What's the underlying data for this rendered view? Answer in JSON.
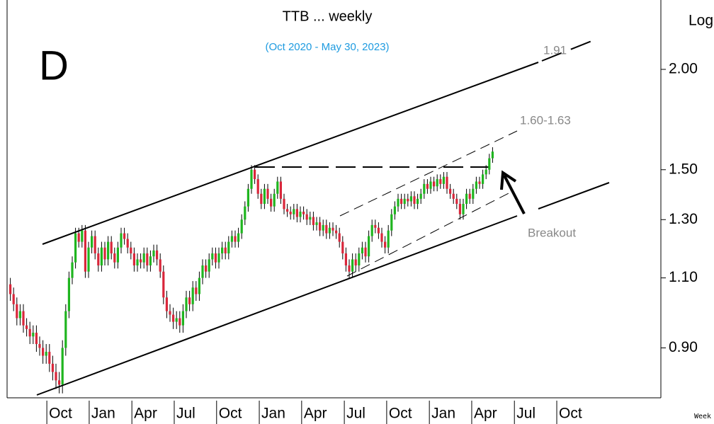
{
  "chart_data": {
    "type": "candlestick",
    "title": "TTB ... weekly",
    "subtitle": "(Oct 2020 - May 30, 2023)",
    "y_label": "Log",
    "footer": "Week",
    "log_scale": true,
    "annotations": [
      "D",
      "1.91",
      "1.60-1.63",
      "Breakout"
    ],
    "up_color": "#1fb51f",
    "down_color": "#d9263a",
    "ylim": [
      0.78,
      2.44
    ],
    "yticks": [
      {
        "value": 0.9,
        "label": "0.90"
      },
      {
        "value": 1.1,
        "label": "1.10"
      },
      {
        "value": 1.3,
        "label": "1.30"
      },
      {
        "value": 1.5,
        "label": "1.50"
      },
      {
        "value": 2.0,
        "label": "2.00"
      }
    ],
    "xlim": [
      -1,
      199
    ],
    "xticks": [
      {
        "value": 11.2,
        "label": "Oct"
      },
      {
        "value": 24.2,
        "label": "Jan"
      },
      {
        "value": 37.3,
        "label": "Apr"
      },
      {
        "value": 50.3,
        "label": "Jul"
      },
      {
        "value": 63.3,
        "label": "Oct"
      },
      {
        "value": 76.4,
        "label": "Jan"
      },
      {
        "value": 89.4,
        "label": "Apr"
      },
      {
        "value": 102.5,
        "label": "Jul"
      },
      {
        "value": 115.5,
        "label": "Oct"
      },
      {
        "value": 128.6,
        "label": "Jan"
      },
      {
        "value": 141.6,
        "label": "Apr"
      },
      {
        "value": 154.7,
        "label": "Jul"
      },
      {
        "value": 167.7,
        "label": "Oct"
      }
    ],
    "open": [
      1.08,
      1.05,
      1.02,
      0.98,
      1.0,
      0.96,
      0.95,
      0.93,
      0.94,
      0.91,
      0.9,
      0.88,
      0.89,
      0.86,
      0.84,
      0.82,
      0.81,
      0.9,
      1.0,
      1.1,
      1.15,
      1.25,
      1.22,
      1.26,
      1.12,
      1.2,
      1.24,
      1.18,
      1.14,
      1.2,
      1.16,
      1.22,
      1.18,
      1.15,
      1.2,
      1.25,
      1.23,
      1.2,
      1.18,
      1.14,
      1.16,
      1.15,
      1.18,
      1.14,
      1.17,
      1.19,
      1.16,
      1.12,
      1.04,
      1.0,
      0.99,
      0.97,
      0.98,
      0.96,
      1.0,
      1.04,
      1.02,
      1.07,
      1.05,
      1.1,
      1.14,
      1.12,
      1.16,
      1.18,
      1.15,
      1.18,
      1.2,
      1.18,
      1.22,
      1.24,
      1.22,
      1.25,
      1.3,
      1.35,
      1.42,
      1.5,
      1.46,
      1.4,
      1.36,
      1.42,
      1.38,
      1.35,
      1.4,
      1.45,
      1.38,
      1.34,
      1.33,
      1.32,
      1.34,
      1.31,
      1.33,
      1.32,
      1.3,
      1.31,
      1.28,
      1.29,
      1.26,
      1.28,
      1.25,
      1.27,
      1.26,
      1.25,
      1.22,
      1.18,
      1.14,
      1.12,
      1.16,
      1.14,
      1.18,
      1.2,
      1.17,
      1.24,
      1.28,
      1.27,
      1.25,
      1.22,
      1.2,
      1.26,
      1.32,
      1.35,
      1.38,
      1.36,
      1.38,
      1.37,
      1.39,
      1.36,
      1.38,
      1.4,
      1.44,
      1.42,
      1.45,
      1.43,
      1.46,
      1.44,
      1.47,
      1.42,
      1.4,
      1.38,
      1.36,
      1.32,
      1.36,
      1.4,
      1.38,
      1.42,
      1.45,
      1.44,
      1.48,
      1.5,
      1.55
    ],
    "high": [
      1.1,
      1.07,
      1.04,
      1.02,
      1.02,
      0.98,
      0.97,
      0.96,
      0.96,
      0.93,
      0.92,
      0.91,
      0.91,
      0.88,
      0.86,
      0.84,
      0.92,
      1.02,
      1.12,
      1.17,
      1.27,
      1.27,
      1.28,
      1.28,
      1.22,
      1.26,
      1.26,
      1.2,
      1.22,
      1.22,
      1.24,
      1.24,
      1.2,
      1.22,
      1.27,
      1.27,
      1.25,
      1.22,
      1.2,
      1.18,
      1.18,
      1.2,
      1.2,
      1.19,
      1.21,
      1.21,
      1.18,
      1.14,
      1.06,
      1.02,
      1.01,
      1.0,
      1.0,
      1.02,
      1.06,
      1.06,
      1.09,
      1.09,
      1.12,
      1.16,
      1.16,
      1.18,
      1.2,
      1.2,
      1.2,
      1.22,
      1.22,
      1.24,
      1.26,
      1.26,
      1.27,
      1.32,
      1.37,
      1.44,
      1.52,
      1.52,
      1.48,
      1.42,
      1.44,
      1.44,
      1.4,
      1.42,
      1.47,
      1.47,
      1.4,
      1.36,
      1.35,
      1.36,
      1.36,
      1.35,
      1.35,
      1.34,
      1.33,
      1.33,
      1.31,
      1.31,
      1.3,
      1.3,
      1.29,
      1.29,
      1.28,
      1.27,
      1.24,
      1.2,
      1.16,
      1.18,
      1.18,
      1.2,
      1.22,
      1.22,
      1.26,
      1.3,
      1.3,
      1.29,
      1.27,
      1.24,
      1.28,
      1.34,
      1.37,
      1.4,
      1.4,
      1.4,
      1.4,
      1.41,
      1.41,
      1.4,
      1.42,
      1.46,
      1.46,
      1.47,
      1.47,
      1.48,
      1.48,
      1.49,
      1.49,
      1.44,
      1.42,
      1.4,
      1.38,
      1.38,
      1.42,
      1.42,
      1.44,
      1.47,
      1.47,
      1.5,
      1.52,
      1.57,
      1.6
    ],
    "low": [
      1.03,
      1.0,
      0.96,
      0.96,
      0.94,
      0.93,
      0.91,
      0.91,
      0.89,
      0.88,
      0.86,
      0.86,
      0.84,
      0.82,
      0.8,
      0.79,
      0.79,
      0.88,
      0.98,
      1.08,
      1.13,
      1.2,
      1.2,
      1.1,
      1.1,
      1.18,
      1.16,
      1.12,
      1.12,
      1.14,
      1.14,
      1.16,
      1.13,
      1.13,
      1.18,
      1.21,
      1.18,
      1.16,
      1.12,
      1.12,
      1.13,
      1.13,
      1.12,
      1.12,
      1.15,
      1.14,
      1.1,
      1.02,
      0.98,
      0.97,
      0.95,
      0.95,
      0.94,
      0.94,
      0.98,
      1.0,
      1.0,
      1.03,
      1.03,
      1.08,
      1.1,
      1.1,
      1.14,
      1.13,
      1.13,
      1.16,
      1.16,
      1.16,
      1.2,
      1.2,
      1.2,
      1.23,
      1.28,
      1.33,
      1.4,
      1.44,
      1.38,
      1.34,
      1.34,
      1.36,
      1.33,
      1.33,
      1.38,
      1.36,
      1.32,
      1.31,
      1.3,
      1.3,
      1.29,
      1.29,
      1.3,
      1.28,
      1.28,
      1.26,
      1.26,
      1.24,
      1.24,
      1.23,
      1.23,
      1.24,
      1.23,
      1.2,
      1.16,
      1.12,
      1.1,
      1.1,
      1.12,
      1.12,
      1.16,
      1.15,
      1.15,
      1.22,
      1.25,
      1.23,
      1.2,
      1.18,
      1.18,
      1.24,
      1.3,
      1.33,
      1.34,
      1.34,
      1.35,
      1.35,
      1.34,
      1.34,
      1.36,
      1.38,
      1.4,
      1.4,
      1.41,
      1.41,
      1.42,
      1.42,
      1.4,
      1.38,
      1.36,
      1.34,
      1.3,
      1.3,
      1.34,
      1.36,
      1.36,
      1.4,
      1.42,
      1.42,
      1.46,
      1.48,
      1.53
    ],
    "close": [
      1.05,
      1.02,
      0.98,
      1.0,
      0.96,
      0.95,
      0.93,
      0.94,
      0.91,
      0.9,
      0.88,
      0.89,
      0.86,
      0.84,
      0.82,
      0.81,
      0.9,
      1.0,
      1.1,
      1.15,
      1.25,
      1.22,
      1.26,
      1.12,
      1.2,
      1.24,
      1.18,
      1.14,
      1.2,
      1.16,
      1.22,
      1.18,
      1.15,
      1.2,
      1.25,
      1.23,
      1.2,
      1.18,
      1.14,
      1.16,
      1.15,
      1.18,
      1.14,
      1.17,
      1.19,
      1.16,
      1.12,
      1.04,
      1.0,
      0.99,
      0.97,
      0.98,
      0.96,
      1.0,
      1.04,
      1.02,
      1.07,
      1.05,
      1.1,
      1.14,
      1.12,
      1.16,
      1.18,
      1.15,
      1.18,
      1.2,
      1.18,
      1.22,
      1.24,
      1.22,
      1.25,
      1.3,
      1.35,
      1.42,
      1.5,
      1.46,
      1.4,
      1.36,
      1.42,
      1.38,
      1.35,
      1.4,
      1.45,
      1.38,
      1.34,
      1.33,
      1.32,
      1.34,
      1.31,
      1.33,
      1.32,
      1.3,
      1.31,
      1.28,
      1.29,
      1.26,
      1.28,
      1.25,
      1.27,
      1.26,
      1.25,
      1.22,
      1.18,
      1.14,
      1.12,
      1.16,
      1.14,
      1.18,
      1.2,
      1.17,
      1.24,
      1.28,
      1.27,
      1.25,
      1.22,
      1.2,
      1.26,
      1.32,
      1.35,
      1.38,
      1.36,
      1.38,
      1.37,
      1.39,
      1.36,
      1.38,
      1.4,
      1.44,
      1.42,
      1.45,
      1.43,
      1.46,
      1.44,
      1.47,
      1.42,
      1.4,
      1.38,
      1.36,
      1.32,
      1.36,
      1.4,
      1.38,
      1.42,
      1.45,
      1.44,
      1.48,
      1.5,
      1.55,
      1.58
    ]
  }
}
